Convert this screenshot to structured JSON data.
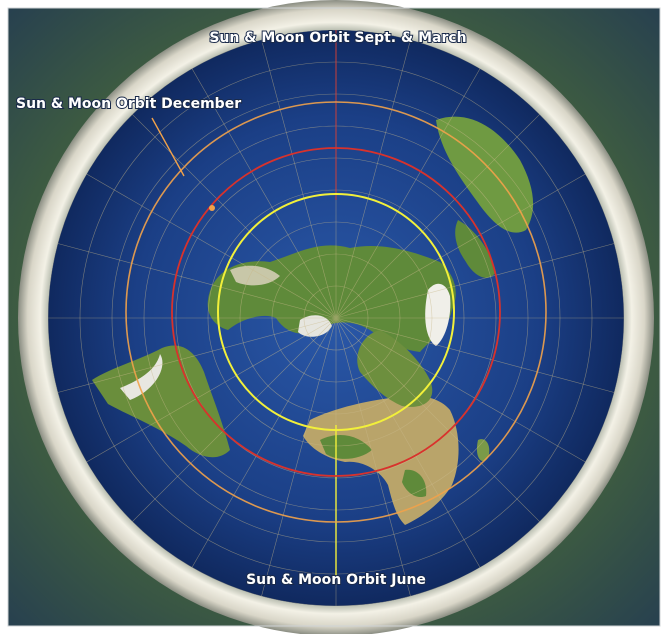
{
  "labels": {
    "orbit_equinox": "Sun & Moon Orbit Sept. & March",
    "orbit_december": "Sun & Moon Orbit December",
    "orbit_june": "Sun & Moon Orbit June"
  },
  "colors": {
    "ocean": "#1b3f86",
    "ocean_deep": "#10295f",
    "ice_rim": "#e9e7dc",
    "land": "#5f8a3a",
    "desert": "#b9a46a",
    "snow": "#f2f2ee",
    "grid": "#c9b98a",
    "orbit_june": "#f2f03a",
    "orbit_equinox": "#d8322c",
    "orbit_december": "#f2a24a"
  }
}
